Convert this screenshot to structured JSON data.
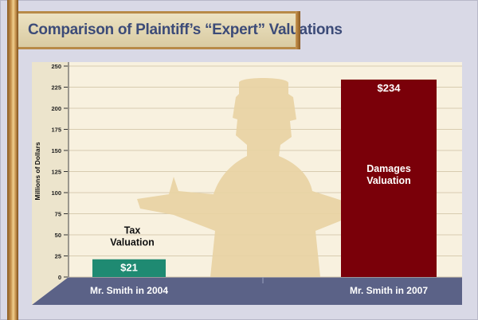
{
  "title": "Comparison of Plaintiff’s “Expert” Valuations",
  "colors": {
    "plot_bg": "#f8f1df",
    "base": "#5b6287",
    "bar_tax": "#1f8a72",
    "bar_damages": "#7a0009",
    "silhouette": "#e8d3a3"
  },
  "decoration": {
    "silhouette": "person-shrugging-silhouette"
  },
  "chart_data": {
    "type": "bar",
    "title": "Comparison of Plaintiff’s “Expert” Valuations",
    "ylabel": "Millions of Dollars",
    "xlabel": "",
    "ylim": [
      0,
      250
    ],
    "yticks": [
      "0",
      "25",
      "50",
      "75",
      "100",
      "125",
      "150",
      "175",
      "200",
      "225",
      "250"
    ],
    "grid": true,
    "categories": [
      "Mr. Smith in 2004",
      "Mr. Smith in 2007"
    ],
    "values": [
      21,
      234
    ],
    "value_labels": [
      "$21",
      "$234"
    ],
    "bar_annotations": [
      [
        "Tax",
        "Valuation"
      ],
      [
        "Damages",
        "Valuation"
      ]
    ]
  }
}
